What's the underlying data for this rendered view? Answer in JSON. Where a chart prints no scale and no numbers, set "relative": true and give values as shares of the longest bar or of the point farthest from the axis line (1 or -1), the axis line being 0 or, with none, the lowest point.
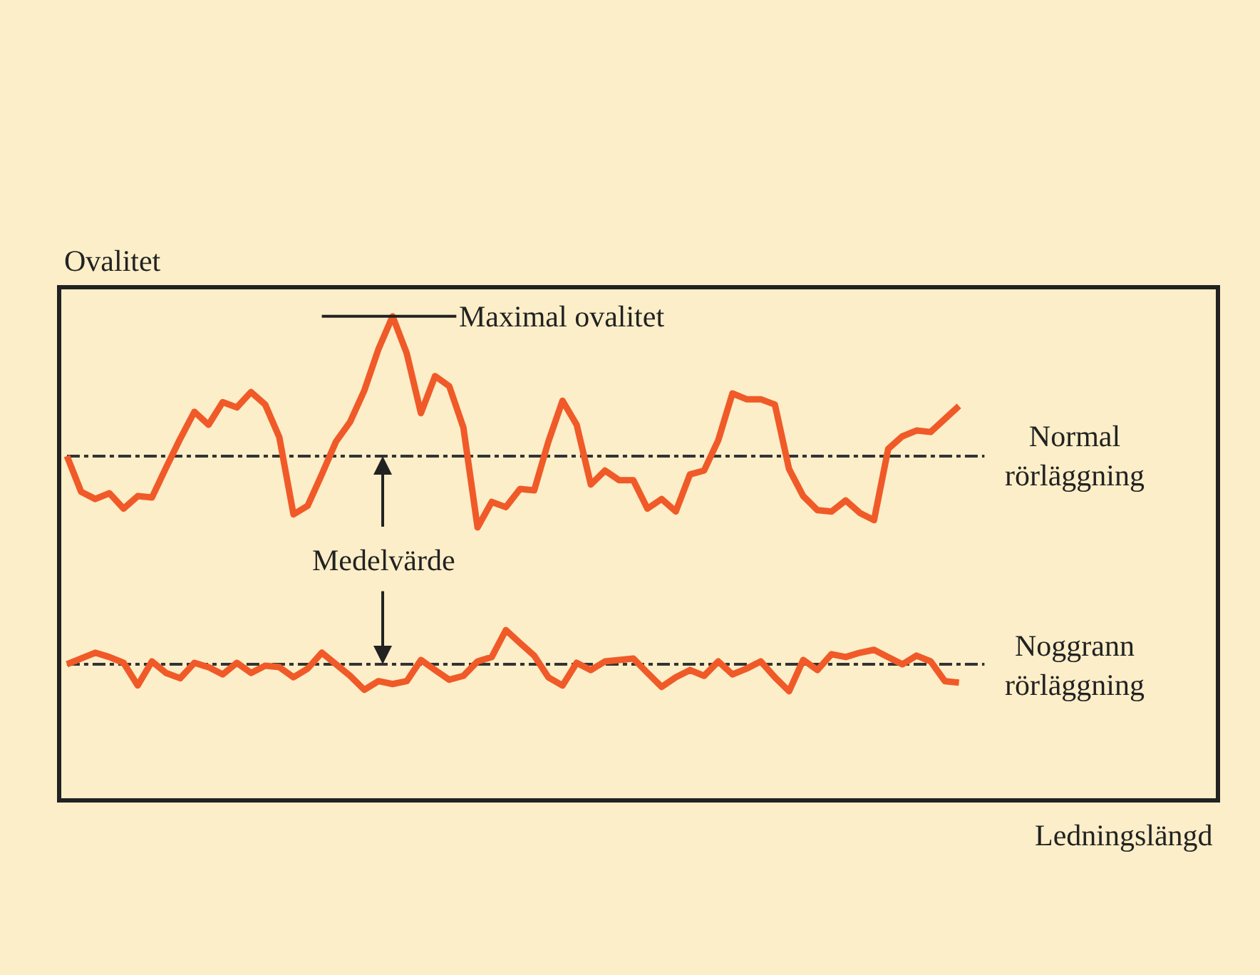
{
  "chart_data": {
    "type": "line",
    "relative": true,
    "ylabel": "Ovalitet",
    "xlabel": "Ledningslängd",
    "categories": [
      null,
      null,
      null,
      null,
      null,
      null,
      null,
      null,
      null,
      null,
      null,
      null,
      null,
      null,
      null,
      null,
      null,
      null,
      null,
      null,
      null,
      null,
      null,
      null,
      null,
      null,
      null,
      null,
      null,
      null,
      null,
      null,
      null,
      null,
      null,
      null,
      null,
      null,
      null,
      null,
      null,
      null,
      null,
      null,
      null,
      null,
      null,
      null,
      null,
      null,
      null,
      null,
      null,
      null,
      null,
      null,
      null,
      null,
      null,
      null,
      null,
      null,
      null,
      null
    ],
    "series": [
      {
        "name": "Normal rörläggning",
        "color": "#f05a28",
        "values": [
          0.71,
          0.636,
          0.621,
          0.633,
          0.601,
          0.627,
          0.624,
          0.686,
          0.746,
          0.802,
          0.775,
          0.822,
          0.811,
          0.843,
          0.817,
          0.749,
          0.589,
          0.607,
          0.672,
          0.74,
          0.781,
          0.846,
          0.932,
          1.0,
          0.923,
          0.799,
          0.876,
          0.855,
          0.769,
          0.562,
          0.615,
          0.604,
          0.642,
          0.639,
          0.74,
          0.825,
          0.775,
          0.651,
          0.68,
          0.66,
          0.66,
          0.601,
          0.621,
          0.595,
          0.672,
          0.68,
          0.743,
          0.84,
          0.828,
          0.828,
          0.817,
          0.683,
          0.627,
          0.598,
          0.595,
          0.618,
          0.592,
          0.577,
          0.725,
          0.751,
          0.763,
          0.76,
          0.787,
          0.814
        ]
      },
      {
        "name": "Noggrann rörläggning",
        "color": "#f05a28",
        "values": [
          0.278,
          0.29,
          0.302,
          0.293,
          0.281,
          0.234,
          0.284,
          0.26,
          0.249,
          0.281,
          0.272,
          0.257,
          0.281,
          0.26,
          0.275,
          0.272,
          0.251,
          0.269,
          0.302,
          0.278,
          0.254,
          0.225,
          0.243,
          0.237,
          0.243,
          0.287,
          0.266,
          0.246,
          0.254,
          0.284,
          0.293,
          0.349,
          0.322,
          0.296,
          0.251,
          0.234,
          0.281,
          0.266,
          0.284,
          0.287,
          0.29,
          0.26,
          0.231,
          0.251,
          0.266,
          0.254,
          0.284,
          0.257,
          0.269,
          0.284,
          0.251,
          0.222,
          0.287,
          0.266,
          0.299,
          0.293,
          0.302,
          0.308,
          0.293,
          0.278,
          0.296,
          0.284,
          0.243,
          0.24
        ]
      }
    ],
    "ref_lines": [
      {
        "axis": "y",
        "value": 0.71,
        "color": "#333333",
        "line_style": "dashdot"
      },
      {
        "axis": "y",
        "value": 0.278,
        "color": "#333333",
        "line_style": "dashdot"
      }
    ],
    "annotations": [
      "Maximal ovalitet",
      "Medelvärde"
    ],
    "legend": false,
    "grid": false,
    "marker": "none",
    "line_style": "solid"
  }
}
